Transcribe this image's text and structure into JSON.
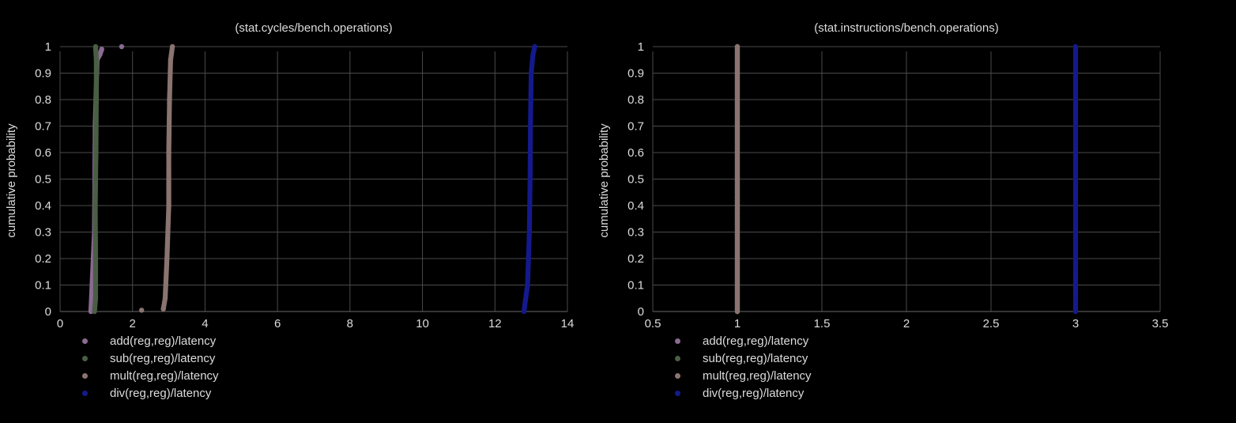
{
  "chart_data": [
    {
      "type": "scatter",
      "title": "(stat.cycles/bench.operations)",
      "xlabel": "",
      "ylabel": "cumulative probability",
      "xlim": [
        0,
        14
      ],
      "ylim": [
        0,
        1
      ],
      "xticks": [
        "0",
        "2",
        "4",
        "6",
        "8",
        "10",
        "12",
        "14"
      ],
      "yticks": [
        "0",
        "0.1",
        "0.2",
        "0.3",
        "0.4",
        "0.5",
        "0.6",
        "0.7",
        "0.8",
        "0.9",
        "1"
      ],
      "grid": true,
      "legend_position": "bottom-left",
      "series": [
        {
          "name": "add(reg,reg)/latency",
          "color": "#8a6a92",
          "points": [
            [
              0.85,
              0.0
            ],
            [
              0.95,
              0.3
            ],
            [
              0.97,
              0.7
            ],
            [
              1.02,
              0.95
            ],
            [
              1.1,
              0.97
            ],
            [
              1.15,
              0.99
            ],
            [
              1.7,
              1.0
            ]
          ]
        },
        {
          "name": "sub(reg,reg)/latency",
          "color": "#4a5e44",
          "points": [
            [
              0.95,
              0.0
            ],
            [
              0.98,
              0.05
            ],
            [
              0.98,
              0.2
            ],
            [
              0.97,
              0.4
            ],
            [
              0.99,
              0.6
            ],
            [
              1.0,
              0.8
            ],
            [
              1.0,
              0.95
            ],
            [
              0.98,
              1.0
            ]
          ]
        },
        {
          "name": "mult(reg,reg)/latency",
          "color": "#8a7470",
          "points": [
            [
              2.25,
              0.005
            ],
            [
              2.85,
              0.01
            ],
            [
              2.9,
              0.05
            ],
            [
              2.95,
              0.2
            ],
            [
              3.0,
              0.4
            ],
            [
              3.0,
              0.6
            ],
            [
              3.02,
              0.8
            ],
            [
              3.05,
              0.95
            ],
            [
              3.1,
              1.0
            ]
          ]
        },
        {
          "name": "div(reg,reg)/latency",
          "color": "#141a8c",
          "points": [
            [
              12.8,
              0.0
            ],
            [
              12.85,
              0.05
            ],
            [
              12.9,
              0.1
            ],
            [
              12.95,
              0.3
            ],
            [
              12.97,
              0.5
            ],
            [
              12.98,
              0.7
            ],
            [
              13.0,
              0.9
            ],
            [
              13.05,
              0.97
            ],
            [
              13.1,
              1.0
            ]
          ]
        }
      ]
    },
    {
      "type": "scatter",
      "title": "(stat.instructions/bench.operations)",
      "xlabel": "",
      "ylabel": "cumulative probability",
      "xlim": [
        0.5,
        3.5
      ],
      "ylim": [
        0,
        1
      ],
      "xticks": [
        "0.5",
        "1",
        "1.5",
        "2",
        "2.5",
        "3",
        "3.5"
      ],
      "yticks": [
        "0",
        "0.1",
        "0.2",
        "0.3",
        "0.4",
        "0.5",
        "0.6",
        "0.7",
        "0.8",
        "0.9",
        "1"
      ],
      "grid": true,
      "legend_position": "bottom-left",
      "series": [
        {
          "name": "add(reg,reg)/latency",
          "color": "#8a6a92",
          "points": [
            [
              1,
              0.0
            ],
            [
              1,
              0.5
            ],
            [
              1,
              1.0
            ]
          ]
        },
        {
          "name": "sub(reg,reg)/latency",
          "color": "#4a5e44",
          "points": [
            [
              1,
              0.0
            ],
            [
              1,
              0.5
            ],
            [
              1,
              1.0
            ]
          ]
        },
        {
          "name": "mult(reg,reg)/latency",
          "color": "#8a7470",
          "points": [
            [
              1,
              0.0
            ],
            [
              1,
              0.5
            ],
            [
              1,
              1.0
            ]
          ]
        },
        {
          "name": "div(reg,reg)/latency",
          "color": "#141a8c",
          "points": [
            [
              3,
              0.0
            ],
            [
              3,
              0.5
            ],
            [
              3,
              1.0
            ]
          ]
        }
      ]
    }
  ]
}
